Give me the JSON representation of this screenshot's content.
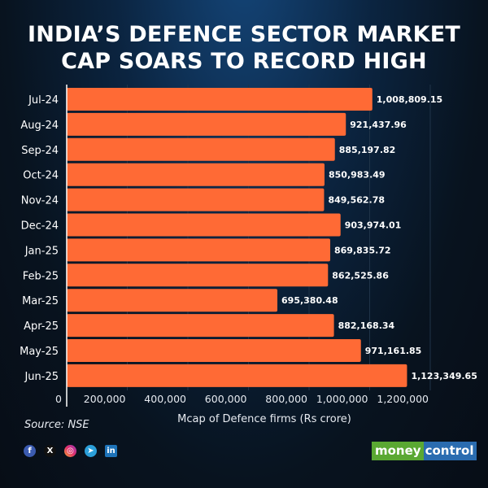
{
  "title_lines": [
    "INDIA’S DEFENCE SECTOR MARKET",
    "CAP SOARS TO RECORD HIGH"
  ],
  "source": "Source: NSE",
  "brand": {
    "part1": "money",
    "part2": "control"
  },
  "social_icons": [
    "facebook-icon",
    "x-icon",
    "instagram-icon",
    "telegram-icon",
    "linkedin-icon"
  ],
  "colors": {
    "bar": "#ff6a35",
    "background": "#0a1a2c",
    "text": "#ffffff"
  },
  "chart_data": {
    "type": "bar",
    "orientation": "horizontal",
    "title": "INDIA’S DEFENCE SECTOR MARKET CAP SOARS TO RECORD HIGH",
    "xlabel": "Mcap of Defence firms (Rs crore)",
    "ylabel": "",
    "xlim": [
      0,
      1200000
    ],
    "xticks": [
      0,
      200000,
      400000,
      600000,
      800000,
      1000000,
      1200000
    ],
    "xtick_labels": [
      "0",
      "200,000",
      "400,000",
      "600,000",
      "800,000",
      "1,000,000",
      "1,200,000"
    ],
    "grid": true,
    "categories": [
      "Jul-24",
      "Aug-24",
      "Sep-24",
      "Oct-24",
      "Nov-24",
      "Dec-24",
      "Jan-25",
      "Feb-25",
      "Mar-25",
      "Apr-25",
      "May-25",
      "Jun-25"
    ],
    "values": [
      1008809.15,
      921437.96,
      885197.82,
      850983.49,
      849562.78,
      903974.01,
      869835.72,
      862525.86,
      695380.48,
      882168.34,
      971161.85,
      1123349.65
    ],
    "value_labels": [
      "1,008,809.15",
      "921,437.96",
      "885,197.82",
      "850,983.49",
      "849,562.78",
      "903,974.01",
      "869,835.72",
      "862,525.86",
      "695,380.48",
      "882,168.34",
      "971,161.85",
      "1,123,349.65"
    ]
  }
}
